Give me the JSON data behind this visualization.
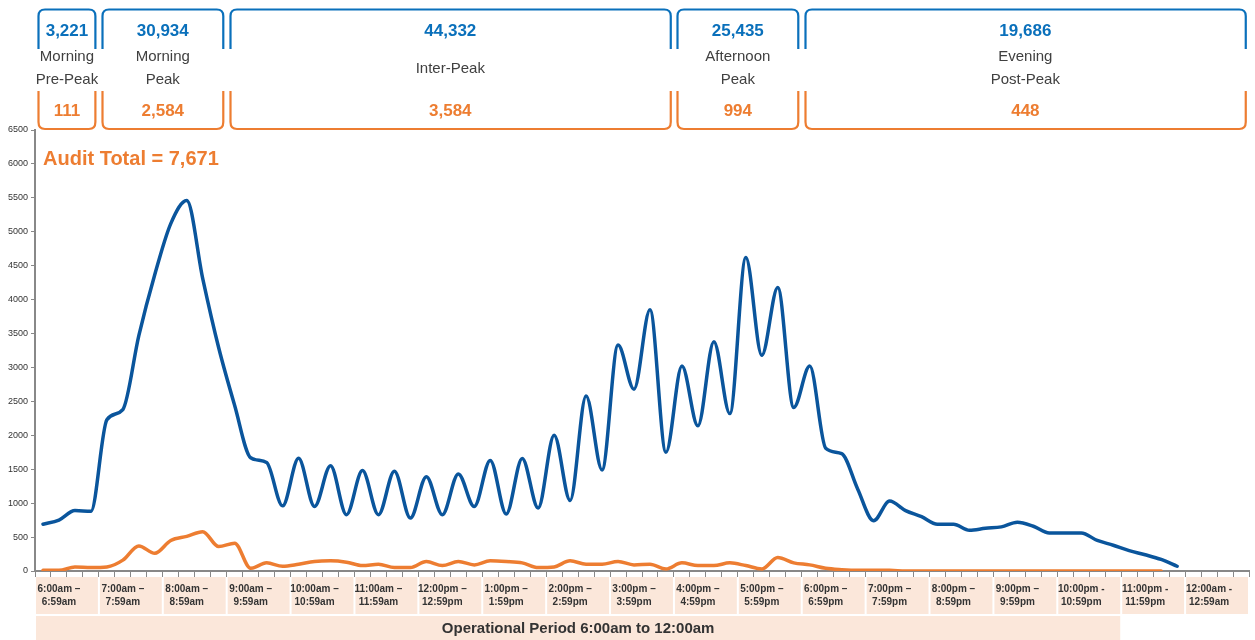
{
  "chart_data": [
    {
      "type": "other",
      "categories": [
        "Morning\nPre-Peak",
        "Morning\nPeak",
        "Inter-Peak",
        "Afternoon\nPeak",
        "Evening\nPost-Peak"
      ],
      "series": [
        {
          "color": "#0a70bb",
          "values": [
            3221,
            30934,
            44332,
            25435,
            19686
          ],
          "value_labels": [
            "3,221",
            "30,934",
            "44,332",
            "25,435",
            "19,686"
          ]
        },
        {
          "color": "#ed7d31",
          "values": [
            111,
            2584,
            3584,
            994,
            448
          ],
          "value_labels": [
            "111",
            "2,584",
            "3,584",
            "994",
            "448"
          ]
        }
      ]
    },
    {
      "type": "line",
      "xlabel": "Operational Period 6:00am to 12:00am",
      "categories": [
        null,
        "6:00am –\n6:59am",
        null,
        null,
        null,
        "7:00am –\n7:59am",
        null,
        null,
        null,
        "8:00am –\n8:59am",
        null,
        null,
        null,
        "9:00am –\n9:59am",
        null,
        null,
        null,
        "10:00am –\n10:59am",
        null,
        null,
        null,
        "11:00am –\n11:59am",
        null,
        null,
        null,
        "12:00pm –\n12:59pm",
        null,
        null,
        null,
        "1:00pm –\n1:59pm",
        null,
        null,
        null,
        "2:00pm –\n2:59pm",
        null,
        null,
        null,
        "3:00pm –\n3:59pm",
        null,
        null,
        null,
        "4:00pm –\n4:59pm",
        null,
        null,
        null,
        "5:00pm –\n5:59pm",
        null,
        null,
        null,
        "6:00pm –\n6:59pm",
        null,
        null,
        null,
        "7:00pm –\n7:59pm",
        null,
        null,
        null,
        "8:00pm –\n8:59pm",
        null,
        null,
        null,
        "9:00pm –\n9:59pm",
        null,
        null,
        null,
        "10:00pm -\n10:59pm",
        null,
        null,
        null,
        "11:00pm -\n11:59pm",
        null,
        null,
        null,
        "12:00am -\n12:59am",
        null,
        null
      ],
      "series": [
        {
          "color": "#0a559c",
          "values": [
            690,
            750,
            890,
            880,
            2230,
            2380,
            3470,
            4370,
            5120,
            5460,
            4310,
            3290,
            2440,
            1670,
            1600,
            960,
            1660,
            950,
            1550,
            830,
            1480,
            830,
            1470,
            780,
            1390,
            830,
            1430,
            950,
            1630,
            840,
            1660,
            930,
            2000,
            1040,
            2580,
            1490,
            3330,
            2680,
            3850,
            1750,
            3020,
            2140,
            3380,
            2320,
            4620,
            3180,
            4180,
            2410,
            3020,
            1810,
            1730,
            1210,
            740,
            1030,
            890,
            800,
            690,
            690,
            600,
            630,
            650,
            720,
            660,
            560,
            560,
            560,
            450,
            380,
            300,
            240,
            170,
            70,
            null,
            null,
            null,
            null
          ]
        },
        {
          "color": "#ed7d31",
          "values": [
            10,
            10,
            60,
            50,
            60,
            160,
            370,
            260,
            450,
            510,
            580,
            360,
            410,
            40,
            120,
            70,
            100,
            140,
            150,
            130,
            80,
            100,
            50,
            50,
            140,
            80,
            140,
            90,
            150,
            140,
            120,
            50,
            60,
            150,
            100,
            100,
            140,
            90,
            100,
            30,
            120,
            80,
            80,
            120,
            80,
            30,
            200,
            120,
            90,
            40,
            20,
            10,
            10,
            10,
            0,
            0,
            0,
            0,
            0,
            0,
            0,
            0,
            0,
            0,
            0,
            0,
            0,
            0,
            0,
            0,
            0,
            null,
            null,
            null,
            null,
            null
          ]
        }
      ],
      "ylim": [
        0,
        6500
      ],
      "yticks": [
        0,
        500,
        1000,
        1500,
        2000,
        2500,
        3000,
        3500,
        4000,
        4500,
        5000,
        5500,
        6000,
        6500
      ],
      "annotations": [
        "Audit Total = 7,671"
      ],
      "grid": false,
      "legend": false,
      "marker": "none",
      "line_style": "solid"
    }
  ]
}
